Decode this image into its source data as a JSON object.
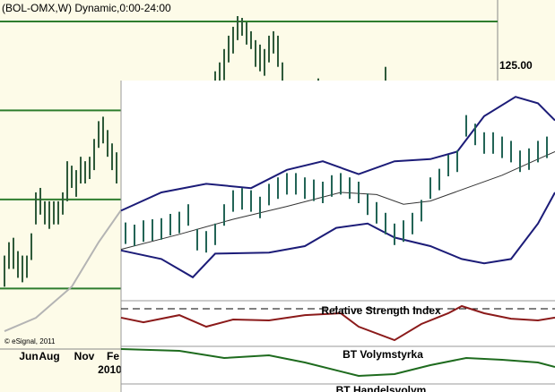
{
  "chart_data": [
    {
      "type": "ohlc",
      "title": "(BOL-OMX,W) Dynamic,0:00-24:00",
      "source": "© eSignal, 2011",
      "color": "#2f5a3a",
      "xlim": [
        -1,
        110
      ],
      "ylim": [
        93.2,
        130.6
      ],
      "yticks": [
        {
          "value": 125,
          "label": "125.00"
        }
      ],
      "hlines": [
        130,
        120,
        110,
        100
      ],
      "hline_color": "#2e7d2e",
      "xticks": [
        {
          "value": 5.4,
          "label": "Jun"
        },
        {
          "value": 10,
          "label": "Aug"
        },
        {
          "value": 17.8,
          "label": "Nov"
        },
        {
          "value": 24.2,
          "label": "Fe"
        }
      ],
      "year_ticks": [
        {
          "value": 23.5,
          "label": "2010"
        }
      ],
      "x": [
        0,
        1,
        2,
        3,
        4,
        5,
        6,
        7,
        8,
        9,
        10,
        11,
        12,
        13,
        14,
        15,
        16,
        17,
        18,
        19,
        20,
        21,
        22,
        23,
        24,
        25,
        47,
        48,
        49,
        50,
        51,
        52,
        53,
        54,
        55,
        56,
        57,
        58,
        59,
        60,
        61,
        62,
        70,
        85
      ],
      "high": [
        103.7,
        105.2,
        105.7,
        104.2,
        103.7,
        103.7,
        106.2,
        110.8,
        111.3,
        109.8,
        109.8,
        109.8,
        109.8,
        110.8,
        114.3,
        113.8,
        113.3,
        114.8,
        114.3,
        114.8,
        116.8,
        118.8,
        119.3,
        117.8,
        116.3,
        115.3,
        124.4,
        125.4,
        126.9,
        128.4,
        129.4,
        130.6,
        130.4,
        129.9,
        128.9,
        127.9,
        127.4,
        126.9,
        128.4,
        128.9,
        128.4,
        125.4,
        123.6,
        124.9
      ],
      "low": [
        100.2,
        102.2,
        102.2,
        101.2,
        100.7,
        101.2,
        103.2,
        107.2,
        108.3,
        107.2,
        106.7,
        107.2,
        107.2,
        108.3,
        109.8,
        111.3,
        110.3,
        111.8,
        111.8,
        112.3,
        113.3,
        115.8,
        116.3,
        114.8,
        113.3,
        111.8,
        122.9,
        122.9,
        123.4,
        125.4,
        126.4,
        127.9,
        128.4,
        127.4,
        126.9,
        124.9,
        124.4,
        123.9,
        125.4,
        126.4,
        124.9,
        122.9,
        122.9,
        122.9
      ],
      "overlays": [
        {
          "x": [
            0,
            7,
            15,
            21,
            26
          ],
          "values": [
            95.2,
            96.7,
            100.2,
            105.2,
            108.8
          ],
          "color": "#b4b4b4"
        }
      ]
    },
    {
      "type": "ohlc",
      "color": "#236456",
      "xlim": [
        -0.5,
        47.9
      ],
      "ylim": [
        0,
        100
      ],
      "high": [
        36,
        35,
        37,
        37.5,
        38,
        40,
        41,
        44.5,
        33,
        32,
        35.5,
        44.5,
        51,
        52,
        51,
        48,
        54,
        57,
        59,
        59,
        57,
        56,
        55,
        58,
        59,
        57,
        55,
        49.5,
        45.5,
        40.5,
        35.5,
        37,
        40.5,
        46.5,
        57,
        61,
        67.5,
        69.5,
        86,
        82,
        78,
        78,
        76,
        74,
        69.5,
        70.5,
        74,
        76
      ],
      "low": [
        26,
        25,
        27,
        27.5,
        28,
        30,
        31,
        34.5,
        23,
        22,
        25.5,
        34.5,
        41,
        42,
        41,
        38,
        44,
        47,
        49,
        49,
        47,
        46,
        45,
        48,
        49,
        47,
        45,
        39.5,
        35.5,
        30.5,
        25.5,
        27,
        30.5,
        36.5,
        47,
        51,
        57.5,
        59.5,
        76,
        72,
        68,
        68,
        66,
        64,
        59.5,
        60.5,
        64,
        66
      ],
      "overlays": [
        {
          "x": [
            -0.5,
            4,
            9,
            14,
            18,
            22,
            26,
            30,
            34,
            37,
            40,
            43.5,
            46,
            47.9
          ],
          "values": [
            41.5,
            50,
            54,
            52,
            60.5,
            64.5,
            58.5,
            64.5,
            65.5,
            69,
            85.5,
            94.5,
            91.5,
            83.5
          ],
          "color": "#1c1c78"
        },
        {
          "x": [
            -0.5,
            4,
            7.5,
            10,
            16,
            20,
            23.5,
            27,
            30,
            34,
            37.5,
            40,
            43,
            46,
            47.9
          ],
          "values": [
            23,
            19,
            10.5,
            21.5,
            22,
            25,
            33.5,
            35.5,
            29,
            25,
            19,
            17,
            19,
            35.5,
            50
          ],
          "color": "#1c1c78"
        },
        {
          "x": [
            -0.5,
            6,
            12,
            18,
            24,
            28,
            31,
            34,
            38,
            42,
            46,
            47.9
          ],
          "values": [
            23.5,
            30.5,
            37.5,
            43.5,
            50,
            49,
            44.5,
            46,
            52,
            58,
            65.5,
            69
          ],
          "color": "#333333"
        }
      ]
    },
    {
      "type": "line",
      "title": "Relative Strength Index",
      "color": "#8b1a1a",
      "xlim": [
        -0.5,
        47.9
      ],
      "ylim": [
        0,
        100
      ],
      "levels": [
        85
      ],
      "x": [
        -0.5,
        2,
        6,
        9,
        12,
        16,
        20,
        24,
        26,
        30,
        33,
        36,
        37.5,
        40,
        43,
        46,
        47.9
      ],
      "values": [
        64,
        53,
        70,
        42.5,
        59.5,
        57.5,
        70,
        74.5,
        42.5,
        10.5,
        49,
        74.5,
        91.5,
        74.5,
        61.5,
        57.5,
        64
      ]
    },
    {
      "type": "line",
      "title": "BT Volymstyrka",
      "color": "#1e6b1e",
      "xlim": [
        -0.5,
        47.9
      ],
      "ylim": [
        0,
        100
      ],
      "x": [
        -0.5,
        6,
        11,
        16,
        20,
        26,
        30,
        34,
        38,
        42,
        46,
        47.9
      ],
      "values": [
        95,
        90,
        70,
        77.5,
        57.5,
        20,
        25,
        50,
        70,
        65,
        57.5,
        45
      ]
    },
    {
      "type": "line",
      "title": "BT Handelsvolym"
    }
  ]
}
